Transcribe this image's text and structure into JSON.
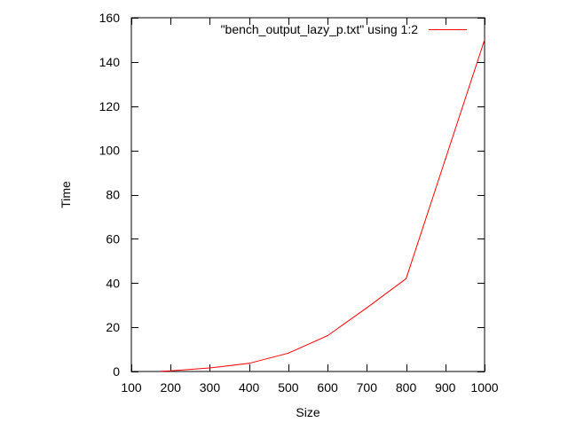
{
  "chart_data": {
    "type": "line",
    "title": "",
    "xlabel": "Size",
    "ylabel": "Time",
    "xlim": [
      100,
      1000
    ],
    "ylim": [
      0,
      160
    ],
    "xticks": [
      100,
      200,
      300,
      400,
      500,
      600,
      700,
      800,
      900,
      1000
    ],
    "yticks": [
      0,
      20,
      40,
      60,
      80,
      100,
      120,
      140,
      160
    ],
    "grid": false,
    "legend_position": "top-right",
    "series": [
      {
        "name": "\"bench_output_lazy_p.txt\" using 1:2",
        "color": "#ff0000",
        "x": [
          175,
          200,
          300,
          400,
          500,
          600,
          700,
          800,
          900,
          1000
        ],
        "y": [
          0.1,
          0.3,
          1.6,
          3.7,
          8.3,
          16.2,
          28.8,
          42.0,
          96.0,
          150.0
        ]
      }
    ]
  }
}
